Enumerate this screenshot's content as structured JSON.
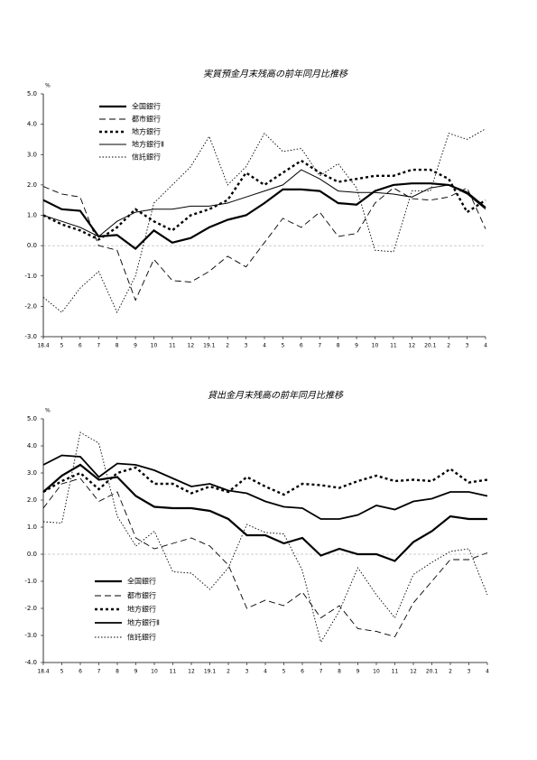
{
  "chart_data": [
    {
      "type": "line",
      "title": "実質預金月末残高の前年同月比推移",
      "unit": "%",
      "categories": [
        "18.4",
        "5",
        "6",
        "7",
        "8",
        "9",
        "10",
        "11",
        "12",
        "19.1",
        "2",
        "3",
        "4",
        "5",
        "6",
        "7",
        "8",
        "9",
        "10",
        "11",
        "12",
        "20.1",
        "2",
        "3",
        "4"
      ],
      "ylim": [
        -3,
        5
      ],
      "yticks": [
        {
          "value": 5,
          "label": "5.0"
        },
        {
          "value": 4,
          "label": "4.0"
        },
        {
          "value": 3,
          "label": "3.0"
        },
        {
          "value": 2,
          "label": "2.0"
        },
        {
          "value": 1,
          "label": "1.0"
        },
        {
          "value": 0,
          "label": "0.0"
        },
        {
          "value": -1,
          "label": "-1.0"
        },
        {
          "value": -2,
          "label": "-2.0"
        },
        {
          "value": -3,
          "label": "-3.0"
        }
      ],
      "series": [
        {
          "name": "全国銀行",
          "color": "#000000",
          "values": [
            1.5,
            1.2,
            1.15,
            0.3,
            0.35,
            -0.1,
            0.5,
            0.1,
            0.25,
            0.6,
            0.85,
            1.0,
            1.4,
            1.85,
            1.85,
            1.8,
            1.4,
            1.35,
            1.8,
            2.0,
            2.05,
            2.05,
            2.0,
            1.75,
            1.25
          ]
        },
        {
          "name": "都市銀行",
          "color": "#000000",
          "values": [
            1.95,
            1.7,
            1.6,
            0.0,
            -0.15,
            -1.8,
            -0.45,
            -1.15,
            -1.2,
            -0.85,
            -0.35,
            -0.7,
            0.1,
            0.9,
            0.6,
            1.1,
            0.3,
            0.4,
            1.4,
            1.9,
            1.55,
            1.5,
            1.6,
            1.9,
            0.55
          ]
        },
        {
          "name": "地方銀行",
          "color": "#000000",
          "values": [
            1.0,
            0.7,
            0.5,
            0.2,
            0.6,
            1.2,
            0.8,
            0.5,
            1.0,
            1.2,
            1.5,
            2.4,
            2.0,
            2.4,
            2.8,
            2.4,
            2.1,
            2.2,
            2.3,
            2.3,
            2.5,
            2.5,
            2.2,
            1.1,
            1.5
          ]
        },
        {
          "name": "地方銀行Ⅱ",
          "color": "#000000",
          "values": [
            1.0,
            0.8,
            0.6,
            0.3,
            0.8,
            1.1,
            1.2,
            1.2,
            1.3,
            1.3,
            1.4,
            1.6,
            1.8,
            2.0,
            2.5,
            2.2,
            1.8,
            1.75,
            1.75,
            1.7,
            1.6,
            1.9,
            2.0,
            1.7,
            1.2
          ]
        },
        {
          "name": "信託銀行",
          "color": "#000000",
          "values": [
            -1.7,
            -2.2,
            -1.4,
            -0.85,
            -2.2,
            -1.0,
            1.4,
            2.0,
            2.6,
            3.6,
            2.0,
            2.6,
            3.7,
            3.1,
            3.2,
            2.3,
            2.7,
            1.9,
            -0.15,
            -0.2,
            1.8,
            1.8,
            3.7,
            3.5,
            3.85
          ]
        }
      ]
    },
    {
      "type": "line",
      "title": "貸出金月末残高の前年同月比推移",
      "unit": "%",
      "categories": [
        "18.4",
        "5",
        "6",
        "7",
        "8",
        "9",
        "10",
        "11",
        "12",
        "19.1",
        "2",
        "3",
        "4",
        "5",
        "6",
        "7",
        "8",
        "9",
        "10",
        "11",
        "12",
        "20.1",
        "2",
        "3",
        "4"
      ],
      "ylim": [
        -4,
        5
      ],
      "yticks": [
        {
          "value": 5,
          "label": "5.0"
        },
        {
          "value": 4,
          "label": "4.0"
        },
        {
          "value": 3,
          "label": "3.0"
        },
        {
          "value": 2,
          "label": "2.0"
        },
        {
          "value": 1,
          "label": "1.0"
        },
        {
          "value": 0,
          "label": "0.0"
        },
        {
          "value": -1,
          "label": "-1.0"
        },
        {
          "value": -2,
          "label": "-2.0"
        },
        {
          "value": -3,
          "label": "-3.0"
        },
        {
          "value": -4,
          "label": "-4.0"
        }
      ],
      "series": [
        {
          "name": "全国銀行",
          "color": "#000000",
          "values": [
            2.3,
            2.9,
            3.3,
            2.75,
            2.85,
            2.15,
            1.75,
            1.7,
            1.7,
            1.6,
            1.3,
            0.7,
            0.7,
            0.4,
            0.6,
            -0.05,
            0.2,
            0.0,
            0.0,
            -0.25,
            0.45,
            0.85,
            1.4,
            1.3,
            1.3
          ]
        },
        {
          "name": "都市銀行",
          "color": "#000000",
          "values": [
            1.7,
            2.6,
            2.8,
            1.95,
            2.3,
            0.6,
            0.2,
            0.4,
            0.6,
            0.3,
            -0.4,
            -2.0,
            -1.7,
            -1.9,
            -1.4,
            -2.35,
            -1.9,
            -2.75,
            -2.85,
            -3.05,
            -1.8,
            -1.0,
            -0.2,
            -0.2,
            0.05
          ]
        },
        {
          "name": "地方銀行",
          "color": "#000000",
          "values": [
            2.3,
            2.7,
            3.0,
            2.4,
            3.0,
            3.2,
            2.6,
            2.6,
            2.25,
            2.5,
            2.3,
            2.85,
            2.5,
            2.2,
            2.6,
            2.55,
            2.45,
            2.7,
            2.9,
            2.7,
            2.75,
            2.7,
            3.15,
            2.65,
            2.75
          ]
        },
        {
          "name": "地方銀行Ⅱ",
          "color": "#000000",
          "values": [
            3.3,
            3.65,
            3.6,
            2.85,
            3.35,
            3.3,
            3.1,
            2.8,
            2.5,
            2.6,
            2.35,
            2.25,
            1.95,
            1.75,
            1.7,
            1.3,
            1.3,
            1.45,
            1.8,
            1.65,
            1.95,
            2.05,
            2.3,
            2.3,
            2.15
          ]
        },
        {
          "name": "信託銀行",
          "color": "#000000",
          "values": [
            1.2,
            1.15,
            4.5,
            4.1,
            1.4,
            0.3,
            0.85,
            -0.65,
            -0.7,
            -1.3,
            -0.5,
            1.1,
            0.8,
            0.75,
            -0.6,
            -3.25,
            -2.1,
            -0.5,
            -1.5,
            -2.35,
            -0.75,
            -0.3,
            0.1,
            0.2,
            -1.5
          ]
        }
      ]
    }
  ]
}
